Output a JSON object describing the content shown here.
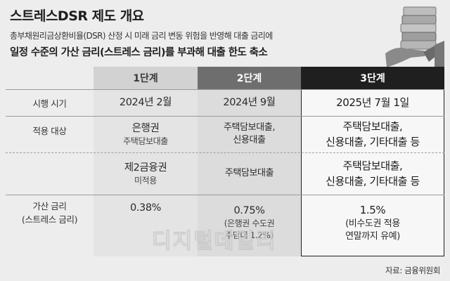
{
  "title": "스트레스DSR 제도 개요",
  "subtitle_line1": "총부채원리금상환비율(DSR) 산정 시 미래 금리 변동 위험을 반영해 대출 금리에",
  "subtitle_line2": "일정 수준의 가산 금리(스트레스 금리)를 부과해 대출 한도 축소",
  "columns": [
    "1단계",
    "2단계",
    "3단계"
  ],
  "rows": {
    "date": {
      "label": "시행 시기",
      "values": [
        "2024년 2월",
        "2024년 9월",
        "2025년 7월 1일"
      ]
    },
    "target": {
      "label": "적용 대상",
      "stage1_a_main": "은행권",
      "stage1_a_sub": "주택담보대출",
      "stage1_b_main": "제2금융권",
      "stage1_b_sub": "미적용",
      "stage2_a_line1": "주택담보대출,",
      "stage2_a_line2": "신용대출",
      "stage2_b": "주택담보대출",
      "stage3_a_line1": "주택담보대출,",
      "stage3_a_line2": "신용대출, 기타대출 등",
      "stage3_b_line1": "주택담보대출,",
      "stage3_b_line2": "신용대출, 기타대출 등"
    },
    "rate": {
      "label_line1": "가산 금리",
      "label_line2": "(스트레스 금리)",
      "stage1": "0.38%",
      "stage2": "0.75%",
      "stage2_note1": "(은행권 수도권",
      "stage2_note2": "주담대 1.2%)",
      "stage3": "1.5%",
      "stage3_note1": "(비수도권 적용",
      "stage3_note2": "연말까지 유예)"
    }
  },
  "source": "자료: 금융위원회",
  "watermark": "디지털데일리"
}
